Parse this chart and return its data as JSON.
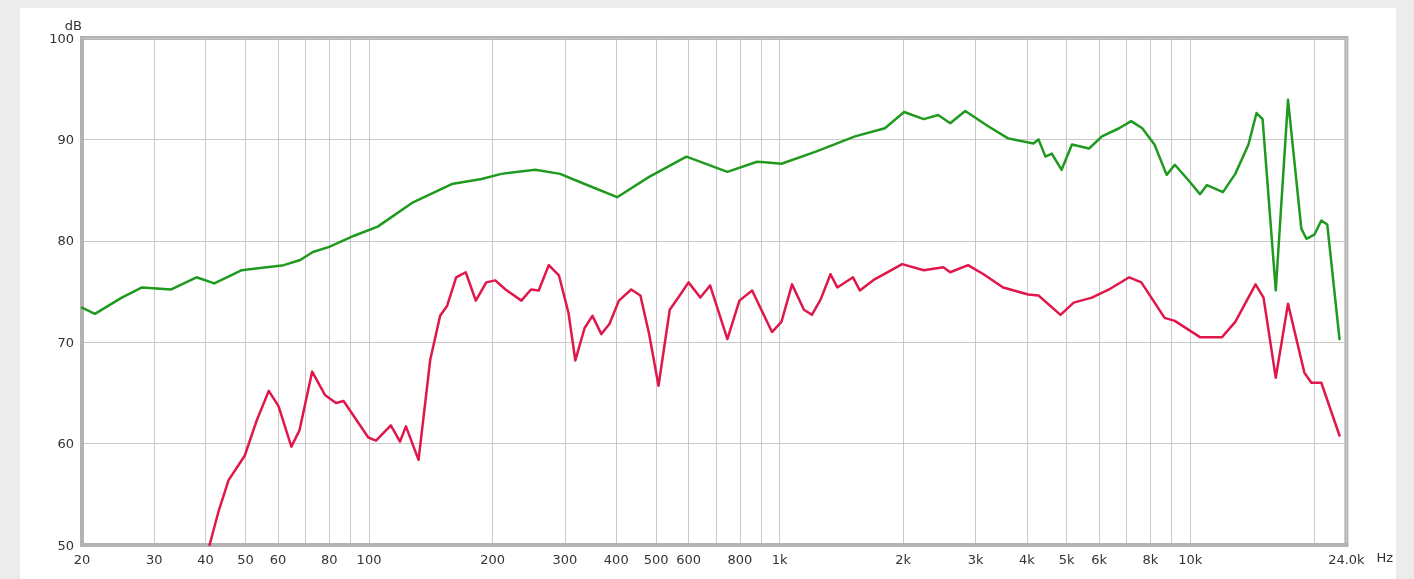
{
  "chart_data": {
    "type": "line",
    "xlabel": "Hz",
    "ylabel": "dB",
    "log": "x",
    "grid": true,
    "marker": "none",
    "line_style": "solid",
    "xlim": [
      20,
      24000
    ],
    "ylim": [
      50,
      100
    ],
    "xticks": [
      20,
      30,
      40,
      50,
      60,
      {
        "value": 70,
        "label": null
      },
      80,
      {
        "value": 90,
        "label": null
      },
      100,
      200,
      300,
      400,
      500,
      600,
      {
        "value": 700,
        "label": null
      },
      800,
      {
        "value": 900,
        "label": null
      },
      {
        "value": 1000,
        "label": "1k"
      },
      {
        "value": 2000,
        "label": "2k"
      },
      {
        "value": 3000,
        "label": "3k"
      },
      {
        "value": 4000,
        "label": "4k"
      },
      {
        "value": 5000,
        "label": "5k"
      },
      {
        "value": 6000,
        "label": "6k"
      },
      {
        "value": 7000,
        "label": null
      },
      {
        "value": 8000,
        "label": "8k"
      },
      {
        "value": 9000,
        "label": null
      },
      {
        "value": 10000,
        "label": "10k"
      },
      {
        "value": 20000,
        "label": null
      },
      {
        "value": 24000,
        "label": "24.0k"
      }
    ],
    "yticks": [
      50,
      60,
      70,
      80,
      90,
      100
    ],
    "series": [
      {
        "color": "#1f9a1f",
        "x": [
          20,
          21.5,
          25,
          28,
          33,
          38,
          42,
          49,
          62,
          68,
          73,
          80,
          92,
          105,
          128,
          159,
          188,
          210,
          254,
          292,
          335,
          402,
          481,
          593,
          746,
          881,
          1010,
          1225,
          1526,
          1804,
          2010,
          2243,
          2434,
          2602,
          2831,
          3220,
          3600,
          4150,
          4270,
          4440,
          4600,
          4860,
          5150,
          5670,
          6095,
          6710,
          7180,
          7640,
          8180,
          8760,
          9170,
          9980,
          10560,
          10980,
          12010,
          12870,
          13860,
          14500,
          15000,
          16150,
          17300,
          18640,
          19180,
          20050,
          20850,
          21560,
          23090
        ],
        "values": [
          73.4,
          72.8,
          74.4,
          75.4,
          75.2,
          76.4,
          75.8,
          77.1,
          77.6,
          78.1,
          78.9,
          79.4,
          80.5,
          81.4,
          83.8,
          85.6,
          86.1,
          86.6,
          87.0,
          86.6,
          85.6,
          84.3,
          86.3,
          88.3,
          86.8,
          87.8,
          87.6,
          88.8,
          90.3,
          91.1,
          92.7,
          92.0,
          92.4,
          91.6,
          92.8,
          91.3,
          90.1,
          89.6,
          90.0,
          88.3,
          88.6,
          87.0,
          89.5,
          89.1,
          90.3,
          91.1,
          91.8,
          91.1,
          89.5,
          86.5,
          87.5,
          85.8,
          84.6,
          85.5,
          84.8,
          86.6,
          89.5,
          92.6,
          92.0,
          75.1,
          93.9,
          81.2,
          80.2,
          80.6,
          82.0,
          81.6,
          70.3
        ]
      },
      {
        "color": "#e0174a",
        "x": [
          40.9,
          43,
          45.5,
          49.8,
          53.3,
          57,
          60.2,
          64.7,
          67.7,
          72.7,
          78.1,
          83.1,
          86.7,
          99.6,
          104,
          113,
          119,
          123,
          132,
          141,
          149,
          155,
          163,
          172,
          182,
          193,
          203,
          215,
          235,
          248,
          259,
          274,
          290,
          306,
          318,
          335,
          350,
          368,
          385,
          406,
          435,
          458,
          481,
          507,
          540,
          571,
          600,
          641,
          677,
          746,
          798,
          857,
          958,
          1010,
          1072,
          1146,
          1198,
          1258,
          1330,
          1382,
          1509,
          1568,
          1703,
          1988,
          2243,
          2504,
          2602,
          2876,
          3137,
          3502,
          4030,
          4270,
          4830,
          5200,
          5760,
          6340,
          7100,
          7600,
          8660,
          9170,
          10560,
          11950,
          12870,
          14420,
          15080,
          16150,
          17300,
          18960,
          19720,
          20850,
          23090
        ],
        "values": [
          50.0,
          53.3,
          56.4,
          58.8,
          62.3,
          65.2,
          63.7,
          59.7,
          61.3,
          67.1,
          64.8,
          64.0,
          64.2,
          60.6,
          60.3,
          61.8,
          60.2,
          61.7,
          58.4,
          68.3,
          72.6,
          73.6,
          76.4,
          76.9,
          74.1,
          75.9,
          76.1,
          75.2,
          74.1,
          75.2,
          75.1,
          77.6,
          76.6,
          72.9,
          68.2,
          71.4,
          72.6,
          70.8,
          71.8,
          74.1,
          75.2,
          74.6,
          70.8,
          65.7,
          73.2,
          74.6,
          75.9,
          74.4,
          75.6,
          70.3,
          74.1,
          75.1,
          71.0,
          72.0,
          75.7,
          73.2,
          72.7,
          74.2,
          76.7,
          75.4,
          76.4,
          75.1,
          76.2,
          77.7,
          77.1,
          77.4,
          76.9,
          77.6,
          76.7,
          75.4,
          74.7,
          74.6,
          72.7,
          73.9,
          74.4,
          75.2,
          76.4,
          75.9,
          72.4,
          72.1,
          70.5,
          70.5,
          72.0,
          75.7,
          74.4,
          66.5,
          73.8,
          67.0,
          66.0,
          66.0,
          60.8
        ]
      }
    ]
  }
}
